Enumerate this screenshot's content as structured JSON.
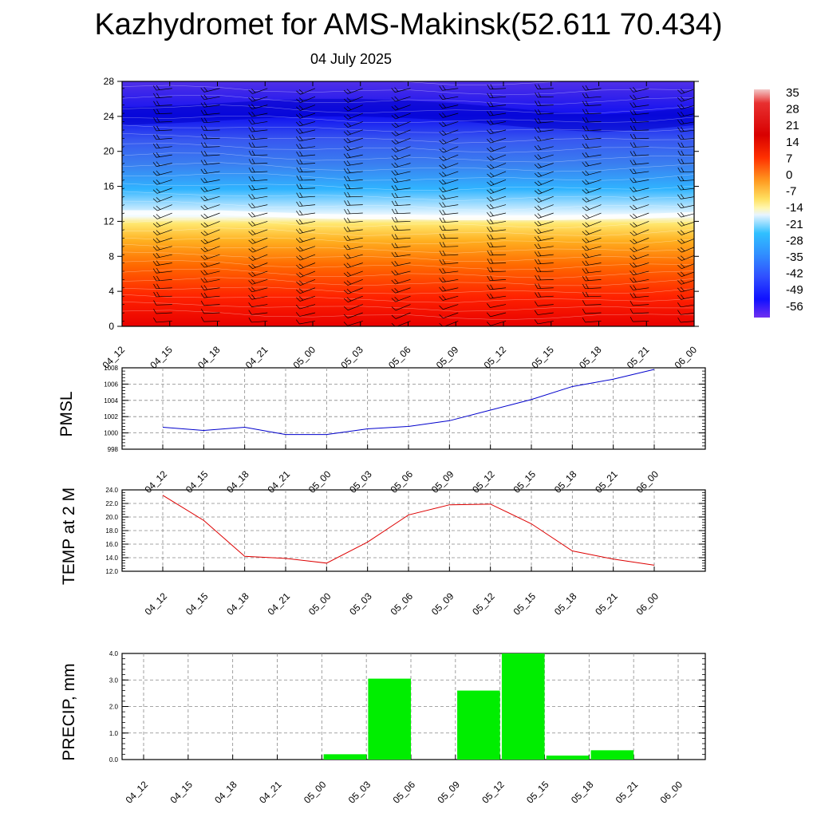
{
  "title": "Kazhydromet for AMS-Makinsk(52.611 70.434)",
  "subtitle": "04 July 2025",
  "colors": {
    "pmsl_line": "#0000cc",
    "temp_line": "#dd0000",
    "precip_bar": "#00ee00",
    "grid": "#888888"
  },
  "colorbar": {
    "labels": [
      "35",
      "28",
      "21",
      "14",
      "7",
      "0",
      "-7",
      "-14",
      "-21",
      "-28",
      "-35",
      "-42",
      "-49",
      "-56"
    ]
  },
  "chart_data": [
    {
      "type": "heatmap",
      "name": "temperature-cross-section",
      "x_labels": [
        "04_12",
        "04_15",
        "04_18",
        "04_21",
        "05_00",
        "05_03",
        "05_06",
        "05_09",
        "05_12",
        "05_15",
        "05_18",
        "05_21",
        "06_00"
      ],
      "y_ticks": [
        "0",
        "4",
        "8",
        "12",
        "16",
        "20",
        "24",
        "28"
      ],
      "ylim": [
        0,
        28
      ],
      "value_range": [
        -56,
        35
      ],
      "freezing_level": [
        13,
        13,
        13,
        12.8,
        12.6,
        12.5,
        12.5,
        12.4,
        12.4,
        12.4,
        12.5,
        12.6,
        12.8
      ],
      "tropopause_level": [
        24,
        24.2,
        24.5,
        24.8,
        25,
        25,
        24.8,
        24.5,
        24,
        23.5,
        23.2,
        23.5,
        24
      ],
      "wind_barbs": true
    },
    {
      "type": "line",
      "name": "pmsl",
      "ylabel": "PMSL",
      "categories": [
        "04_12",
        "04_15",
        "04_18",
        "04_21",
        "05_00",
        "05_03",
        "05_06",
        "05_09",
        "05_12",
        "05_15",
        "05_18",
        "05_21",
        "06_00"
      ],
      "values": [
        1000.7,
        1000.3,
        1000.7,
        999.8,
        999.8,
        1000.5,
        1000.8,
        1001.5,
        1002.8,
        1004.1,
        1005.7,
        1006.6,
        1007.8
      ],
      "ylim": [
        998,
        1008
      ],
      "y_ticks": [
        "998",
        "1000",
        "1002",
        "1004",
        "1006",
        "1008"
      ],
      "grid": true
    },
    {
      "type": "line",
      "name": "temp2m",
      "ylabel": "TEMP at 2 M",
      "categories": [
        "04_12",
        "04_15",
        "04_18",
        "04_21",
        "05_00",
        "05_03",
        "05_06",
        "05_09",
        "05_12",
        "05_15",
        "05_18",
        "05_21",
        "06_00"
      ],
      "values": [
        23.2,
        19.5,
        14.2,
        13.9,
        13.2,
        16.3,
        20.3,
        21.8,
        21.9,
        19.0,
        15.0,
        13.8,
        12.9
      ],
      "ylim": [
        12,
        24
      ],
      "y_ticks": [
        "12.0",
        "14.0",
        "16.0",
        "18.0",
        "20.0",
        "22.0",
        "24.0"
      ],
      "grid": true
    },
    {
      "type": "bar",
      "name": "precip",
      "ylabel": "PRECIP, mm",
      "categories": [
        "04_12",
        "04_15",
        "04_18",
        "04_21",
        "05_00",
        "05_03",
        "05_06",
        "05_09",
        "05_12",
        "05_15",
        "05_18",
        "05_21",
        "06_00"
      ],
      "values": [
        0,
        0,
        0,
        0,
        0.2,
        3.05,
        0,
        2.6,
        4.0,
        0.15,
        0.35,
        0,
        0
      ],
      "ylim": [
        0,
        4
      ],
      "y_ticks": [
        "0.0",
        "1.0",
        "2.0",
        "3.0",
        "4.0"
      ],
      "grid": true
    }
  ]
}
